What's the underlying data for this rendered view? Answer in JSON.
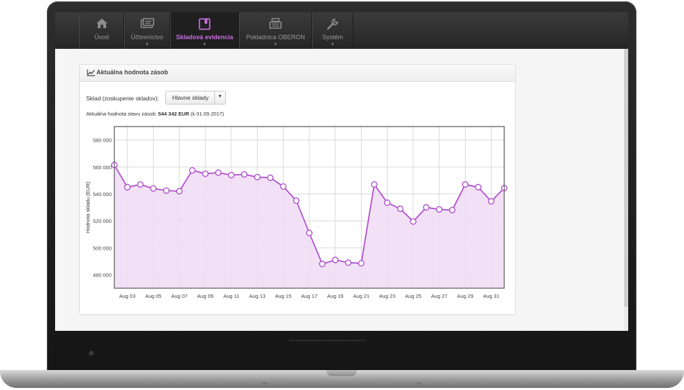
{
  "nav": {
    "items": [
      {
        "label": "Úvod",
        "icon": "home-icon",
        "active": false
      },
      {
        "label": "Účtovníctvo",
        "icon": "accounting-icon",
        "active": false
      },
      {
        "label": "Skladová evidencia",
        "icon": "warehouse-book-icon",
        "active": true
      },
      {
        "label": "Pokladnica OBERON",
        "icon": "cash-register-icon",
        "active": false
      },
      {
        "label": "Systém",
        "icon": "wrench-icon",
        "active": false
      }
    ],
    "active_color": "#c86ee0"
  },
  "panel": {
    "title": "Aktuálna hodnota zásob",
    "filter_label": "Sklad (zoskupenie skladov):",
    "filter_value": "Hlavne sklady",
    "status_prefix": "Aktuálna hodnota stavu zásob:",
    "status_value": "544 342 EUR",
    "status_date": "(k 01.09.2017)"
  },
  "chart_data": {
    "type": "area",
    "title": "",
    "xlabel": "",
    "ylabel": "Hodnota skladu (EUR)",
    "ylim": [
      470000,
      590000
    ],
    "yticks": [
      "480 000",
      "500 000",
      "520 000",
      "540 000",
      "560 000",
      "580 000"
    ],
    "xticks": [
      "Aug 03",
      "Aug 05",
      "Aug 07",
      "Aug 09",
      "Aug 11",
      "Aug 13",
      "Aug 15",
      "Aug 17",
      "Aug 19",
      "Aug 21",
      "Aug 23",
      "Aug 25",
      "Aug 27",
      "Aug 29",
      "Aug 31"
    ],
    "x": [
      "Aug 02",
      "Aug 03",
      "Aug 04",
      "Aug 05",
      "Aug 06",
      "Aug 07",
      "Aug 08",
      "Aug 09",
      "Aug 10",
      "Aug 11",
      "Aug 12",
      "Aug 13",
      "Aug 14",
      "Aug 15",
      "Aug 16",
      "Aug 17",
      "Aug 18",
      "Aug 19",
      "Aug 20",
      "Aug 21",
      "Aug 22",
      "Aug 23",
      "Aug 24",
      "Aug 25",
      "Aug 26",
      "Aug 27",
      "Aug 28",
      "Aug 29",
      "Aug 30",
      "Aug 31",
      "Sep 01"
    ],
    "values": [
      561500,
      545000,
      547000,
      544000,
      542500,
      542000,
      557500,
      555000,
      555800,
      554000,
      554500,
      552500,
      552000,
      545500,
      535000,
      511000,
      488000,
      491000,
      489000,
      488500,
      547000,
      533500,
      529000,
      519500,
      530000,
      528500,
      528000,
      547000,
      545000,
      534500,
      544342
    ],
    "grid": true,
    "colors": {
      "line": "#b04fcf",
      "fill": "#f0dcf5",
      "marker_fill": "#ffffff",
      "axis": "#555555",
      "grid": "#d8d8d8"
    }
  }
}
